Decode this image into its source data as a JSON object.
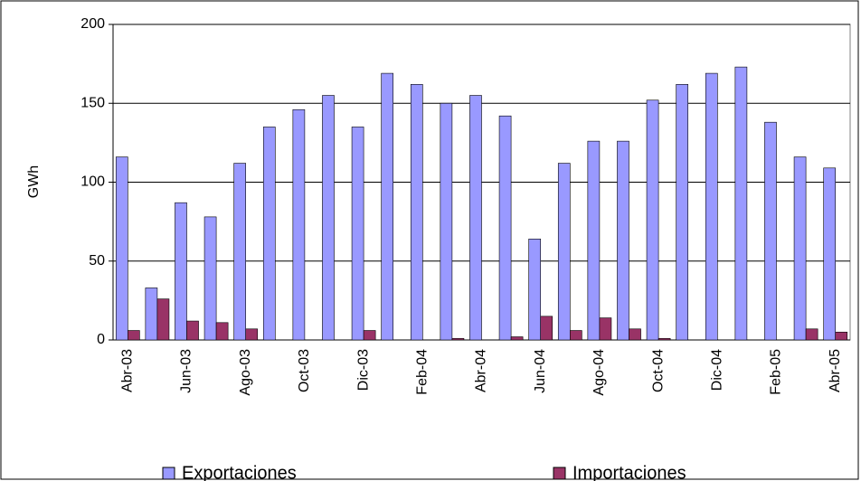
{
  "chart_data": {
    "type": "bar",
    "y_label": "GWh",
    "categories": [
      "Abr-03",
      null,
      "Jun-03",
      null,
      "Ago-03",
      null,
      "Oct-03",
      null,
      "Dic-03",
      null,
      "Feb-04",
      null,
      "Abr-04",
      null,
      "Jun-04",
      null,
      "Ago-04",
      null,
      "Oct-04",
      null,
      "Dic-04",
      null,
      "Feb-05",
      null,
      "Abr-05"
    ],
    "series": [
      {
        "name": "Exportaciones",
        "color": "#9999ff",
        "values": [
          116,
          33,
          87,
          78,
          112,
          135,
          146,
          155,
          135,
          169,
          162,
          150,
          155,
          142,
          64,
          112,
          126,
          126,
          152,
          162,
          169,
          173,
          138,
          116,
          109
        ]
      },
      {
        "name": "Importaciones",
        "color": "#993366",
        "values": [
          6,
          26,
          12,
          11,
          7,
          0,
          0,
          0,
          6,
          0,
          0,
          1,
          0,
          2,
          15,
          6,
          14,
          7,
          1,
          0,
          0,
          0,
          0,
          7,
          5
        ]
      }
    ],
    "ylim": [
      0,
      200
    ],
    "yticks": [
      0,
      50,
      100,
      150,
      200
    ],
    "grid": true,
    "legend": "bottom"
  }
}
